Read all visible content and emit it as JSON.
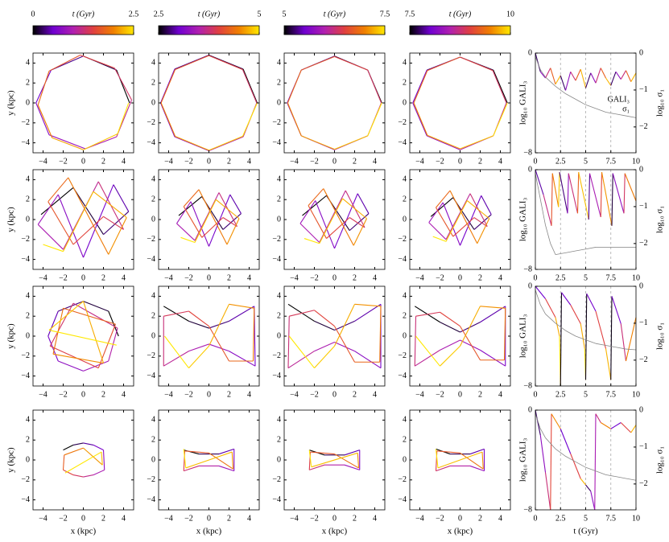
{
  "chart_data": {
    "type": "orbit-grid",
    "colormap": [
      "#000000",
      "#7000d0",
      "#b020b0",
      "#e04040",
      "#f08000",
      "#ffe800"
    ],
    "colorbars": [
      {
        "label": "t (Gyr)",
        "lim": [
          0,
          2.5
        ],
        "ticks": [
          0,
          2.5
        ]
      },
      {
        "label": "t (Gyr)",
        "lim": [
          2.5,
          5
        ],
        "ticks": [
          2.5,
          5
        ]
      },
      {
        "label": "t (Gyr)",
        "lim": [
          5,
          7.5
        ],
        "ticks": [
          5,
          7.5
        ]
      },
      {
        "label": "t (Gyr)",
        "lim": [
          7.5,
          10
        ],
        "ticks": [
          7.5,
          10
        ]
      }
    ],
    "orbit_axes": {
      "xlabel": "x (kpc)",
      "ylabel": "y (kpc)",
      "xlim": [
        -5,
        5
      ],
      "ylim": [
        -5,
        5
      ],
      "xticks": [
        {
          "value": -4,
          "label": "−4"
        },
        {
          "value": -2,
          "label": "−2"
        },
        0,
        2,
        4
      ],
      "yticks": [
        {
          "value": -4,
          "label": "−4"
        },
        {
          "value": -2,
          "label": "−2"
        },
        0,
        2,
        4
      ]
    },
    "orbits": [
      [
        {
          "x": [
            4.6,
            3.3,
            0,
            -3.2,
            -4.7,
            -3.4,
            0.2,
            3.3,
            4.8,
            3.1,
            -0.3,
            -3.4,
            -4.5,
            -3.1,
            0,
            3.4,
            4.5
          ],
          "y": [
            0,
            3.3,
            4.7,
            3.3,
            0,
            -3.2,
            -4.6,
            -3.4,
            0.3,
            3.5,
            4.8,
            3.2,
            -0.2,
            -3.5,
            -4.7,
            -3.1,
            0
          ]
        },
        {
          "x": [
            4.8,
            3.4,
            0,
            -3.4,
            -4.8,
            -3.4,
            0,
            3.4,
            4.75,
            3.35,
            0,
            -3.35,
            -4.75,
            -3.35,
            0,
            3.35,
            4.8
          ],
          "y": [
            0,
            3.4,
            4.8,
            3.4,
            0,
            -3.4,
            -4.8,
            -3.4,
            0,
            3.35,
            4.75,
            3.35,
            0,
            -3.35,
            -4.75,
            -3.35,
            0
          ]
        },
        {
          "x": [
            4.7,
            3.3,
            0,
            -3.3,
            -4.7,
            -3.3,
            0,
            3.3,
            4.65,
            3.3,
            0,
            -3.3,
            -4.65,
            -3.3,
            0,
            3.3,
            4.7
          ],
          "y": [
            0,
            3.3,
            4.7,
            3.3,
            0,
            -3.3,
            -4.7,
            -3.3,
            0,
            3.3,
            4.65,
            3.3,
            0,
            -3.3,
            -4.65,
            -3.3,
            0
          ]
        },
        {
          "x": [
            4.7,
            3.3,
            0,
            -3.3,
            -4.7,
            -3.3,
            0,
            3.3,
            4.6,
            3.25,
            0,
            -3.25,
            -4.6,
            -3.25,
            0,
            3.3,
            4.7
          ],
          "y": [
            0,
            3.3,
            4.6,
            3.3,
            0,
            -3.3,
            -4.7,
            -3.3,
            0,
            3.25,
            4.6,
            3.25,
            0,
            -3.25,
            -4.6,
            -3.3,
            0
          ]
        }
      ],
      [
        {
          "x": [
            -4.2,
            -1,
            2,
            4.5,
            3,
            0,
            -2.5,
            -4.5,
            -2,
            1.5,
            4,
            2,
            -1,
            -3.5,
            -1.5,
            2.5,
            4.3,
            1,
            -2,
            -4
          ],
          "y": [
            0.5,
            3.2,
            -1.5,
            0.8,
            3.5,
            -3.8,
            2.5,
            -0.5,
            -3,
            3.8,
            -1,
            0.3,
            -2.5,
            1.8,
            4.2,
            -3.5,
            0.2,
            2.8,
            -3.2,
            -2.5
          ]
        },
        {
          "x": [
            -3,
            -0.7,
            1.4,
            3.2,
            2.1,
            0,
            -1.8,
            -3.2,
            -1.4,
            1,
            2.8,
            1.4,
            -0.7,
            -2.5,
            -1,
            1.8,
            3,
            0.7,
            -1.4,
            -2.8
          ],
          "y": [
            0.4,
            2.3,
            -1,
            0.6,
            2.5,
            -2.7,
            1.8,
            -0.4,
            -2.1,
            2.7,
            -0.7,
            0.2,
            -1.8,
            1.3,
            3,
            -2.5,
            0.1,
            2,
            -2.3,
            -1.8
          ]
        },
        {
          "x": [
            -3.2,
            -0.8,
            1.5,
            3.4,
            2.3,
            0,
            -1.9,
            -3.4,
            -1.5,
            1.1,
            3,
            1.5,
            -0.8,
            -2.6,
            -1.1,
            1.9,
            3.2,
            0.8,
            -1.5,
            -3
          ],
          "y": [
            0.4,
            2.4,
            -1.1,
            0.6,
            2.6,
            -2.9,
            1.9,
            -0.4,
            -2.3,
            2.9,
            -0.8,
            0.2,
            -1.9,
            1.4,
            3.1,
            -2.6,
            0.1,
            2.1,
            -2.4,
            -1.9
          ]
        },
        {
          "x": [
            -2.9,
            -0.7,
            1.4,
            3.1,
            2.1,
            0,
            -1.7,
            -3.1,
            -1.4,
            1,
            2.7,
            1.4,
            -0.7,
            -2.4,
            -1,
            1.7,
            2.9,
            0.7,
            -1.4,
            -2.7
          ],
          "y": [
            0.3,
            2.2,
            -1,
            0.5,
            2.4,
            -2.6,
            1.7,
            -0.3,
            -2,
            2.6,
            -0.7,
            0.2,
            -1.7,
            1.2,
            2.9,
            -2.4,
            0.1,
            1.9,
            -2.2,
            -1.7
          ]
        }
      ],
      [
        {
          "x": [
            3.5,
            2.5,
            0,
            -2.5,
            -3.5,
            -2.5,
            0,
            2.5,
            3.4,
            -1,
            -3.3,
            1.5,
            3.2,
            -2,
            -3,
            2,
            0,
            -3.4,
            3.3
          ],
          "y": [
            0,
            2.5,
            3.5,
            2.5,
            0,
            -2.5,
            -3.5,
            -2.5,
            0.8,
            3.3,
            -1,
            -3.2,
            1.2,
            2.8,
            -1.8,
            -2.7,
            3.5,
            0.6,
            -0.9
          ]
        },
        {
          "x": [
            -4.5,
            -2,
            0,
            2,
            4.5,
            4.6,
            2,
            0,
            -2,
            -4.5,
            -4.5,
            -2,
            0,
            2,
            4.4,
            4.5,
            2,
            0,
            -2,
            -4.4
          ],
          "y": [
            3,
            1.5,
            0.8,
            1.5,
            3,
            -3,
            -1.5,
            -0.8,
            -1.5,
            -3,
            2,
            2.5,
            1,
            -2.5,
            -2.5,
            2.8,
            3.2,
            -1,
            -3.2,
            0
          ]
        },
        {
          "x": [
            -4.6,
            -2,
            0,
            2,
            4.6,
            4.6,
            2,
            0,
            -2,
            -4.6,
            -4.5,
            -2,
            0,
            2,
            4.5,
            4.6,
            2,
            0,
            -2,
            -4.5
          ],
          "y": [
            3.2,
            1.5,
            0.6,
            1.5,
            3.2,
            -3.2,
            -1.5,
            -0.6,
            -1.5,
            -3.2,
            2,
            2.6,
            1,
            -2.6,
            -2.6,
            3,
            3.2,
            -1,
            -3.2,
            0
          ]
        },
        {
          "x": [
            -4.5,
            -2,
            0,
            2,
            4.5,
            4.5,
            2,
            0,
            -2,
            -4.5,
            -4.4,
            -2,
            0,
            2,
            4.4,
            4.5,
            2,
            0,
            -2,
            -4.4
          ],
          "y": [
            3,
            1.4,
            0.4,
            1.4,
            3,
            -3,
            -1.4,
            -0.4,
            -1.4,
            -3,
            2,
            2.4,
            1,
            -2.4,
            -2.4,
            2.8,
            3,
            -1,
            -3,
            0
          ]
        }
      ],
      [
        {
          "x": [
            -2,
            -1,
            0,
            1,
            2,
            2.1,
            1,
            0,
            -1,
            -2,
            -1.9,
            0,
            1.9,
            1.8,
            -1.8
          ],
          "y": [
            1,
            1.5,
            1.7,
            1.5,
            1,
            -1,
            -1.5,
            -1.7,
            -1.5,
            -1,
            0.5,
            1.2,
            -0.5,
            0.8,
            -1.3
          ]
        },
        {
          "x": [
            -2.5,
            -1,
            1,
            2.5,
            2.5,
            1,
            -1,
            -2.5,
            -2.4,
            0,
            2.4,
            2.3,
            -2.3,
            -2.5
          ],
          "y": [
            1,
            0.6,
            0.6,
            1.1,
            -1.1,
            -0.6,
            -0.6,
            -1.1,
            0.9,
            0.7,
            -0.9,
            0.8,
            -0.8,
            1.1
          ]
        },
        {
          "x": [
            -2.5,
            -1,
            1,
            2.5,
            2.5,
            1,
            -1,
            -2.5,
            -2.4,
            0,
            2.4,
            2.3,
            -2.3,
            -2.5
          ],
          "y": [
            1,
            0.5,
            0.5,
            1,
            -1,
            -0.5,
            -0.5,
            -1,
            0.8,
            0.6,
            -0.8,
            0.7,
            -0.7,
            1
          ]
        },
        {
          "x": [
            -2.4,
            -1,
            1,
            2.4,
            2.4,
            1,
            -1,
            -2.4,
            -2.3,
            0,
            2.3,
            2.2,
            -2.2,
            -2.4
          ],
          "y": [
            1.1,
            0.6,
            0.6,
            1.1,
            -1.1,
            -0.6,
            -0.6,
            -1.1,
            0.9,
            0.7,
            -0.9,
            0.8,
            -0.8,
            1.1
          ]
        }
      ]
    ],
    "gali_axes": {
      "xlabel": "t (Gyr)",
      "ylabel": "log₁₀ GALI₃",
      "y2label": "log₁₀ σ₁",
      "xlim": [
        0,
        10
      ],
      "ylim": [
        -8,
        0
      ],
      "y2lim": [
        -2.7,
        0
      ],
      "xticks": [
        0,
        2.5,
        5,
        7.5,
        10
      ],
      "yticks": [
        0,
        {
          "value": -8,
          "label": "−8"
        }
      ],
      "y2ticks": [
        0,
        {
          "value": -1,
          "label": "−1"
        },
        {
          "value": -2,
          "label": "−2"
        }
      ],
      "guides": [
        2.5,
        5,
        7.5
      ]
    },
    "gali": [
      {
        "series": [
          {
            "name": "GALI₃",
            "t": [
              0,
              0.5,
              1,
              1.5,
              2,
              2.5,
              3,
              3.5,
              4,
              4.5,
              5,
              5.5,
              6,
              6.5,
              7,
              7.5,
              8,
              8.5,
              9,
              9.5,
              10
            ],
            "values": [
              0,
              -1.5,
              -2,
              -1.2,
              -2.5,
              -1.8,
              -3,
              -1.5,
              -2.2,
              -1.3,
              -2.8,
              -1.6,
              -2.4,
              -1.2,
              -2,
              -2.6,
              -1.5,
              -2.1,
              -1.4,
              -2.3,
              -1.6
            ]
          },
          {
            "name": "σ₁",
            "axis": "y2",
            "color": "#888888",
            "t": [
              0,
              0.5,
              1,
              2,
              3,
              4,
              5,
              6,
              7,
              8,
              9,
              10
            ],
            "values": [
              -0.1,
              -0.45,
              -0.65,
              -0.9,
              -1.1,
              -1.25,
              -1.4,
              -1.5,
              -1.6,
              -1.65,
              -1.7,
              -1.75
            ]
          }
        ]
      },
      {
        "series": [
          {
            "t": [
              0,
              0.8,
              1.6,
              1.7,
              2.3,
              2.4,
              3.2,
              3.3,
              4.2,
              4.3,
              5.3,
              5.4,
              6.5,
              6.6,
              7.6,
              7.7,
              8.8,
              8.9,
              10
            ],
            "values": [
              0,
              -2,
              -4.5,
              -0.3,
              -3,
              -0.2,
              -3.5,
              -0.3,
              -3.5,
              -0.2,
              -4,
              -0.3,
              -3.8,
              -0.2,
              -4.5,
              -0.3,
              -3.5,
              -0.3,
              -2.5
            ]
          },
          {
            "axis": "y2",
            "color": "#888888",
            "t": [
              0,
              0.5,
              1,
              1.5,
              2,
              3,
              4,
              5,
              6,
              7,
              8,
              9,
              10
            ],
            "values": [
              -0.1,
              -0.8,
              -1.5,
              -2,
              -2.3,
              -2.25,
              -2.2,
              -2.15,
              -2.1,
              -2.1,
              -2.1,
              -2.1,
              -2.1
            ]
          }
        ]
      },
      {
        "series": [
          {
            "t": [
              0,
              1,
              2,
              2.4,
              2.5,
              2.6,
              3.5,
              4.5,
              4.9,
              5,
              5.1,
              6,
              7,
              7.5,
              7.6,
              8.5,
              9,
              10
            ],
            "values": [
              0,
              -1,
              -2.5,
              -4,
              -8,
              -0.5,
              -1.5,
              -3,
              -5,
              -7.5,
              -0.6,
              -2,
              -5,
              -7.5,
              -0.8,
              -3,
              -6,
              -2.5
            ]
          },
          {
            "axis": "y2",
            "color": "#888888",
            "t": [
              0,
              0.5,
              1,
              2,
              3,
              4,
              5,
              6,
              7,
              8,
              9,
              10
            ],
            "values": [
              -0.1,
              -0.5,
              -0.75,
              -1,
              -1.2,
              -1.35,
              -1.45,
              -1.55,
              -1.6,
              -1.65,
              -1.7,
              -1.72
            ]
          }
        ]
      },
      {
        "series": [
          {
            "t": [
              0,
              0.5,
              1,
              1.5,
              1.6,
              2.5,
              3.5,
              4.5,
              5,
              5.5,
              5.9,
              6,
              6.5,
              7.5,
              8.5,
              9.5,
              10
            ],
            "values": [
              0,
              -2,
              -5,
              -8,
              -0.3,
              -1.5,
              -3.5,
              -5.5,
              -6,
              -6.5,
              -8,
              -0.3,
              -1,
              -1.5,
              -1,
              -1.8,
              -1.2
            ]
          },
          {
            "axis": "y2",
            "color": "#888888",
            "t": [
              0,
              0.5,
              1,
              2,
              3,
              4,
              5,
              6,
              7,
              8,
              9,
              10
            ],
            "values": [
              -0.1,
              -0.5,
              -0.75,
              -1.05,
              -1.25,
              -1.4,
              -1.55,
              -1.65,
              -1.75,
              -1.8,
              -1.85,
              -1.9
            ]
          }
        ]
      }
    ]
  }
}
